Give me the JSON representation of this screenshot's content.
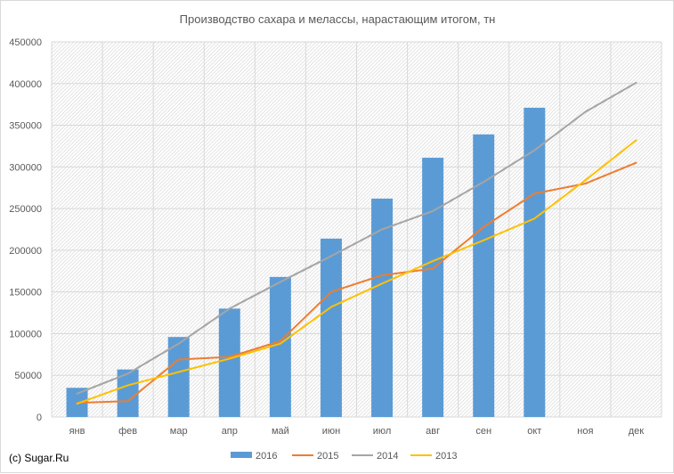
{
  "credit": "(c) Sugar.Ru",
  "chart_data": {
    "type": "bar",
    "title": "Производство сахара и мелассы, нарастающим итогом, тн",
    "xlabel": "",
    "ylabel": "",
    "categories": [
      "янв",
      "фев",
      "мар",
      "апр",
      "май",
      "июн",
      "июл",
      "авг",
      "сен",
      "окт",
      "ноя",
      "дек"
    ],
    "ylim": [
      0,
      450000
    ],
    "yticks": [
      0,
      50000,
      100000,
      150000,
      200000,
      250000,
      300000,
      350000,
      400000,
      450000
    ],
    "grid": true,
    "legend_position": "bottom",
    "series": [
      {
        "name": "2016",
        "kind": "bar",
        "color": "#5b9bd5",
        "values": [
          35000,
          57000,
          96000,
          130000,
          168000,
          214000,
          262000,
          311000,
          339000,
          371000,
          null,
          null
        ]
      },
      {
        "name": "2015",
        "kind": "line",
        "color": "#ed7d31",
        "values": [
          17000,
          19000,
          69000,
          72000,
          91000,
          150000,
          170000,
          178000,
          228000,
          268000,
          280000,
          305000
        ]
      },
      {
        "name": "2014",
        "kind": "line",
        "color": "#a5a5a5",
        "values": [
          28000,
          52000,
          88000,
          130000,
          162000,
          193000,
          225000,
          247000,
          282000,
          320000,
          366000,
          401000
        ]
      },
      {
        "name": "2013",
        "kind": "line",
        "color": "#ffc000",
        "values": [
          16000,
          38000,
          54000,
          70000,
          88000,
          132000,
          160000,
          187000,
          212000,
          238000,
          284000,
          332000
        ]
      }
    ]
  }
}
